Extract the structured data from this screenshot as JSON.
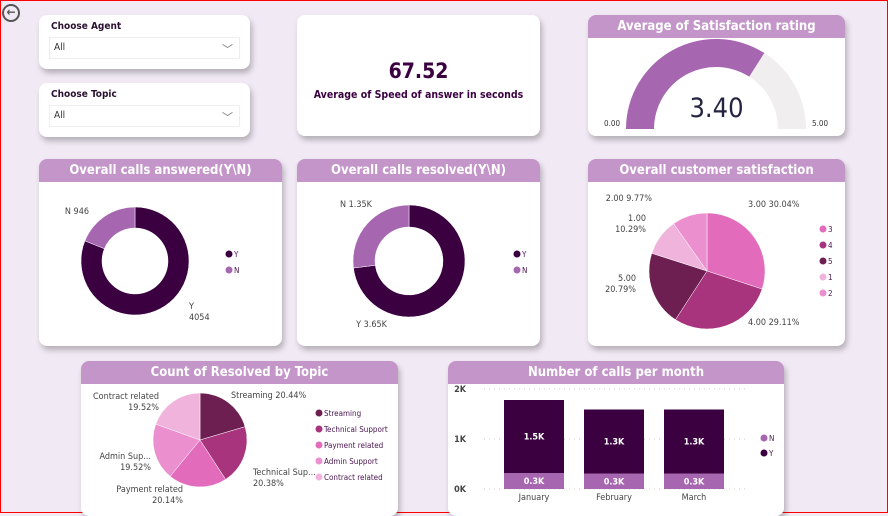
{
  "back_icon": "arrow-left-circle-icon",
  "slicers": [
    {
      "label": "Choose Agent",
      "value": "All"
    },
    {
      "label": "Choose Topic",
      "value": "All"
    }
  ],
  "kpi": {
    "value": "67.52",
    "label": "Average of Speed of answer in seconds"
  },
  "gauge": {
    "title": "Average of Satisfaction rating",
    "value": 3.4,
    "value_label": "3.40",
    "min_label": "0.00",
    "max_label": "5.00",
    "min": 0,
    "max": 5,
    "fill_color": "#a666b0",
    "track_color": "#f0eeee"
  },
  "chart_data": [
    {
      "type": "donut",
      "title": "Overall calls answered(Y\\N)",
      "series": [
        {
          "name": "Y",
          "value": 4054,
          "label": "Y\n4054",
          "color": "#3a0040"
        },
        {
          "name": "N",
          "value": 946,
          "label": "N 946",
          "color": "#a666b0"
        }
      ],
      "legend": [
        "Y",
        "N"
      ],
      "legend_position": "right"
    },
    {
      "type": "donut",
      "title": "Overall calls resolved(Y\\N)",
      "series": [
        {
          "name": "Y",
          "value": 3650,
          "label": "Y 3.65K",
          "color": "#3a0040"
        },
        {
          "name": "N",
          "value": 1350,
          "label": "N 1.35K",
          "color": "#a666b0"
        }
      ],
      "legend": [
        "Y",
        "N"
      ],
      "legend_position": "right"
    },
    {
      "type": "pie",
      "title": "Overall customer satisfaction",
      "series": [
        {
          "name": "3",
          "value": 30.04,
          "label": "3.00 30.04%",
          "color": "#e36bbb"
        },
        {
          "name": "4",
          "value": 29.11,
          "label": "4.00 29.11%",
          "color": "#a8347e"
        },
        {
          "name": "5",
          "value": 20.79,
          "label": "5.00\n20.79%",
          "color": "#6e1f51"
        },
        {
          "name": "1",
          "value": 10.29,
          "label": "1.00\n10.29%",
          "color": "#f0b4dc"
        },
        {
          "name": "2",
          "value": 9.77,
          "label": "2.00 9.77%",
          "color": "#ec8fcf"
        }
      ],
      "legend_position": "right"
    },
    {
      "type": "pie",
      "title": "Count of Resolved by Topic",
      "series": [
        {
          "name": "Streaming",
          "value": 20.44,
          "label": "Streaming 20.44%",
          "color": "#6e1f51"
        },
        {
          "name": "Technical Support",
          "value": 20.38,
          "label": "Technical Sup...\n20.38%",
          "color": "#a8347e"
        },
        {
          "name": "Payment related",
          "value": 20.14,
          "label": "Payment related\n20.14%",
          "color": "#e36bbb"
        },
        {
          "name": "Admin Support",
          "value": 19.52,
          "label": "Admin Sup...\n19.52%",
          "color": "#ec8fcf"
        },
        {
          "name": "Contract related",
          "value": 19.52,
          "label": "Contract related\n19.52%",
          "color": "#f0b4dc"
        }
      ],
      "legend_position": "right"
    },
    {
      "type": "bar",
      "stacked": true,
      "title": "Number of calls per month",
      "categories": [
        "January",
        "February",
        "March"
      ],
      "series": [
        {
          "name": "N",
          "values": [
            0.32,
            0.31,
            0.31
          ],
          "labels": [
            "0.3K",
            "0.3K",
            "0.3K"
          ],
          "color": "#a666b0"
        },
        {
          "name": "Y",
          "values": [
            1.46,
            1.28,
            1.28
          ],
          "labels": [
            "1.5K",
            "1.3K",
            "1.3K"
          ],
          "color": "#3a0040"
        }
      ],
      "yticks": [
        "0K",
        "1K",
        "2K"
      ],
      "ylim": [
        0,
        2
      ],
      "grid": true,
      "legend": [
        "N",
        "Y"
      ],
      "legend_position": "right"
    }
  ]
}
